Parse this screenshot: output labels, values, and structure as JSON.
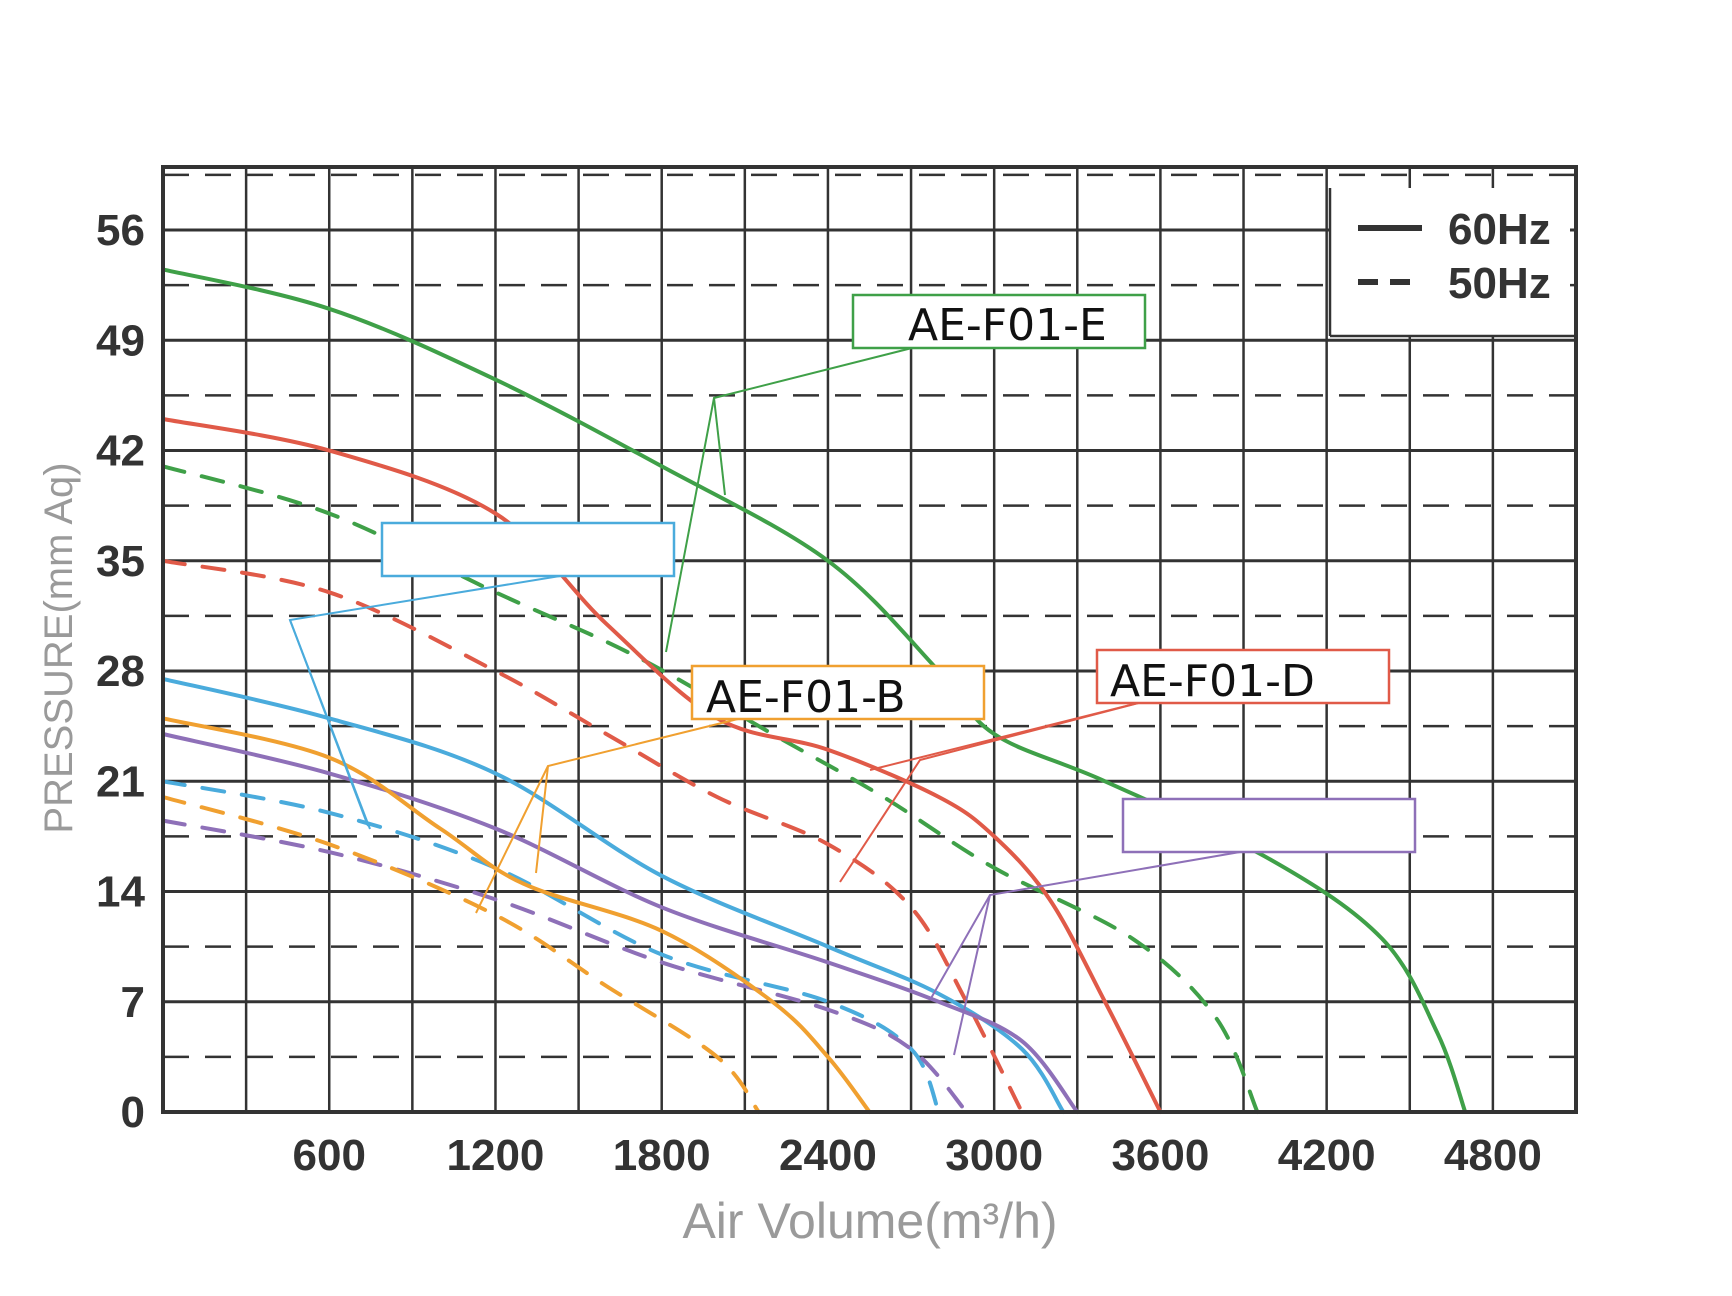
{
  "chart_data": {
    "type": "line",
    "title": "",
    "xlabel": "Air Volume(m³/h)",
    "ylabel": "PRESSURE(mm Aq)",
    "xlim": [
      0,
      5100
    ],
    "ylim": [
      0,
      60
    ],
    "x_ticks": [
      600,
      1200,
      1800,
      2400,
      3000,
      3600,
      4200,
      4800
    ],
    "y_ticks": [
      0,
      7,
      14,
      21,
      28,
      35,
      42,
      49,
      56
    ],
    "grid": true,
    "legend": {
      "position": "top-right",
      "entries": [
        {
          "label": "60Hz",
          "style": "solid"
        },
        {
          "label": "50Hz",
          "style": "dashed"
        }
      ]
    },
    "series": [
      {
        "model": "AE-F01-E",
        "frequency": "60Hz",
        "style": "solid",
        "color": "#3fa048",
        "x": [
          0,
          600,
          1200,
          1800,
          2400,
          2800,
          3000,
          3400,
          4000,
          4400,
          4600,
          4700
        ],
        "y": [
          53.5,
          51,
          46.5,
          41,
          35,
          28,
          24,
          21,
          16,
          11,
          5,
          0
        ]
      },
      {
        "model": "AE-F01-E",
        "frequency": "50Hz",
        "style": "dashed",
        "color": "#3fa048",
        "x": [
          0,
          600,
          1200,
          1700,
          2200,
          2600,
          3000,
          3500,
          3800,
          3950
        ],
        "y": [
          41,
          38,
          33,
          29,
          24,
          20,
          15.5,
          11,
          6,
          0
        ]
      },
      {
        "model": "AE-F01-D",
        "frequency": "60Hz",
        "style": "solid",
        "color": "#e05a48",
        "x": [
          0,
          600,
          1200,
          1600,
          2000,
          2400,
          2800,
          3000,
          3200,
          3400,
          3600
        ],
        "y": [
          44,
          42,
          38,
          31,
          25,
          23,
          20,
          17.5,
          13.5,
          7,
          0
        ]
      },
      {
        "model": "AE-F01-D",
        "frequency": "50Hz",
        "style": "dashed",
        "color": "#e05a48",
        "x": [
          0,
          600,
          1200,
          1600,
          2000,
          2400,
          2700,
          2900,
          3100
        ],
        "y": [
          35,
          33,
          28,
          24,
          20,
          17,
          13,
          7,
          0
        ]
      },
      {
        "model": "",
        "frequency": "60Hz",
        "style": "solid",
        "color": "#4aabdc",
        "x": [
          0,
          600,
          1200,
          1800,
          2400,
          2800,
          3100,
          3250
        ],
        "y": [
          27.5,
          25,
          21.5,
          15,
          10.5,
          7.5,
          4,
          0
        ]
      },
      {
        "model": "",
        "frequency": "50Hz",
        "style": "dashed",
        "color": "#4aabdc",
        "x": [
          0,
          600,
          1200,
          1800,
          2400,
          2700,
          2800
        ],
        "y": [
          21,
          19,
          15.5,
          10,
          7,
          4,
          0
        ]
      },
      {
        "model": "",
        "frequency": "60Hz",
        "style": "solid",
        "color": "#8e70b8",
        "x": [
          0,
          600,
          1200,
          1800,
          2400,
          2800,
          3100,
          3300
        ],
        "y": [
          24,
          21.5,
          18,
          13,
          9.5,
          7,
          4.5,
          0
        ]
      },
      {
        "model": "",
        "frequency": "50Hz",
        "style": "dashed",
        "color": "#8e70b8",
        "x": [
          0,
          600,
          1200,
          1800,
          2400,
          2700,
          2900
        ],
        "y": [
          18.5,
          16.5,
          13.5,
          9.5,
          6.5,
          4,
          0
        ]
      },
      {
        "model": "AE-F01-B",
        "frequency": "60Hz",
        "style": "solid",
        "color": "#f0a030",
        "x": [
          0,
          600,
          1000,
          1300,
          1800,
          2200,
          2400,
          2550
        ],
        "y": [
          25,
          22.5,
          18,
          14.5,
          11.5,
          7,
          3.5,
          0
        ]
      },
      {
        "model": "AE-F01-B",
        "frequency": "50Hz",
        "style": "dashed",
        "color": "#f0a030",
        "x": [
          0,
          600,
          1200,
          1600,
          2000,
          2150
        ],
        "y": [
          20,
          17,
          12.5,
          8,
          3.5,
          0
        ]
      }
    ],
    "annotations": [
      {
        "label": "AE-F01-E",
        "color": "#3fa048"
      },
      {
        "label": "AE-F01-B",
        "color": "#f0a030"
      },
      {
        "label": "AE-F01-D",
        "color": "#e05a48"
      },
      {
        "label": "",
        "color": "#4aabdc"
      },
      {
        "label": "",
        "color": "#8e70b8"
      }
    ]
  }
}
